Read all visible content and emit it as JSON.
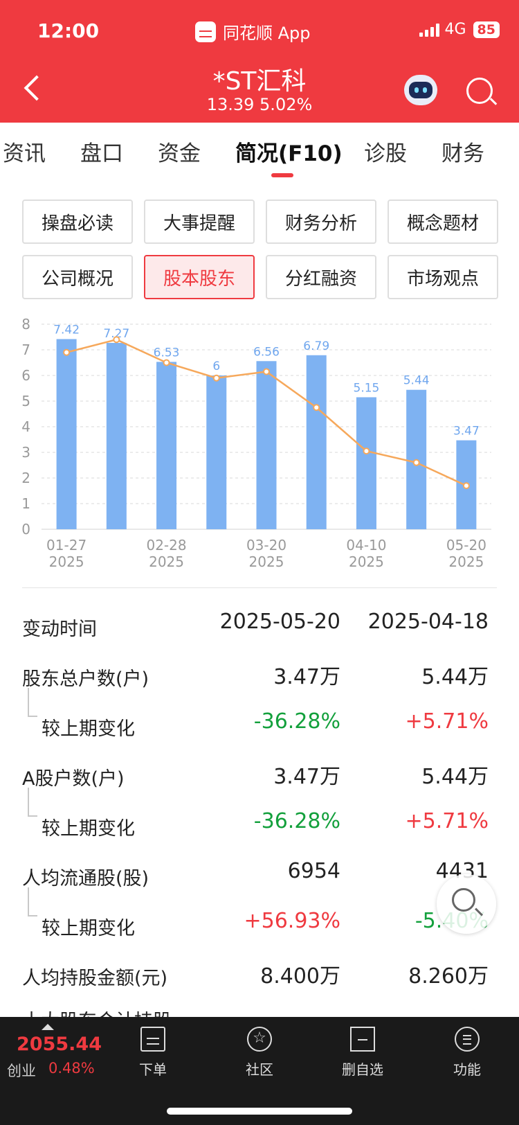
{
  "status_bar": {
    "time": "12:00",
    "app_name": "同花顺 App",
    "network": "4G",
    "battery": "85"
  },
  "header": {
    "stock_name": "*ST汇科",
    "price_line": "13.39 5.02%"
  },
  "tabs": [
    {
      "label": "资讯"
    },
    {
      "label": "盘口"
    },
    {
      "label": "资金"
    },
    {
      "label": "简况(F10)",
      "active": true
    },
    {
      "label": "诊股"
    },
    {
      "label": "财务"
    }
  ],
  "buttons": [
    {
      "label": "操盘必读"
    },
    {
      "label": "大事提醒"
    },
    {
      "label": "财务分析"
    },
    {
      "label": "概念题材"
    },
    {
      "label": "公司概况"
    },
    {
      "label": "股本股东",
      "active": true
    },
    {
      "label": "分红融资"
    },
    {
      "label": "市场观点"
    }
  ],
  "chart_data": {
    "type": "bar",
    "categories": [
      "01-27 2025",
      "",
      "02-28 2025",
      "",
      "03-20 2025",
      "",
      "04-10 2025",
      "",
      "05-20 2025"
    ],
    "x_tick_labels": [
      {
        "top": "01-27",
        "bottom": "2025",
        "index": 0
      },
      {
        "top": "02-28",
        "bottom": "2025",
        "index": 2
      },
      {
        "top": "03-20",
        "bottom": "2025",
        "index": 4
      },
      {
        "top": "04-10",
        "bottom": "2025",
        "index": 6
      },
      {
        "top": "05-20",
        "bottom": "2025",
        "index": 8
      }
    ],
    "series": [
      {
        "values": [
          7.42,
          7.27,
          6.53,
          6,
          6.56,
          6.79,
          5.15,
          5.44,
          3.47
        ],
        "labels": [
          "7.42",
          "7.27",
          "6.53",
          "6",
          "6.56",
          "6.79",
          "5.15",
          "5.44",
          "3.47"
        ],
        "color": "#7eb2f2"
      },
      {
        "type": "line",
        "values": [
          6.9,
          7.4,
          6.5,
          5.9,
          6.15,
          4.75,
          3.05,
          2.6,
          1.7
        ],
        "color": "#f6a85b"
      }
    ],
    "y_ticks": [
      "0",
      "1",
      "2",
      "3",
      "4",
      "5",
      "6",
      "7",
      "8"
    ],
    "ylim": [
      0,
      8
    ],
    "grid": true
  },
  "table": {
    "header": {
      "label": "变动时间",
      "col1": "2025-05-20",
      "col2": "2025-04-18"
    },
    "rows": [
      {
        "label": "股东总户数(户)",
        "col1": "3.47万",
        "col2": "5.44万"
      },
      {
        "label": "较上期变化",
        "col1": "-36.28%",
        "col2": "+5.71%"
      },
      {
        "label": "A股户数(户)",
        "col1": "3.47万",
        "col2": "5.44万"
      },
      {
        "label": "较上期变化",
        "col1": "-36.28%",
        "col2": "+5.71%"
      },
      {
        "label": "人均流通股(股)",
        "col1": "6954",
        "col2": "4431"
      },
      {
        "label": "较上期变化",
        "col1": "+56.93%",
        "col2": "-5.40%"
      },
      {
        "label": "人均持股金额(元)",
        "col1": "8.400万",
        "col2": "8.260万"
      }
    ],
    "cut_label": "十大股东合计持股"
  },
  "bottom_bar": {
    "index_value": "2055.44",
    "index_name": "创业",
    "index_change": "0.48%",
    "nav": [
      {
        "label": "下单",
        "icon": "document-icon"
      },
      {
        "label": "社区",
        "icon": "community-icon"
      },
      {
        "label": "删自选",
        "icon": "remove-watchlist-icon"
      },
      {
        "label": "功能",
        "icon": "menu-icon"
      }
    ]
  }
}
